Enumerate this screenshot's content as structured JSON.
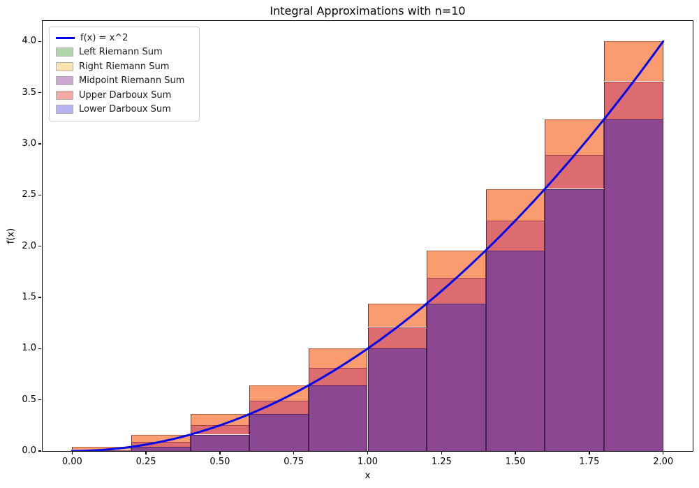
{
  "chart_data": {
    "type": "bar+line",
    "title": "Integral Approximations with n=10",
    "xlabel": "x",
    "ylabel": "f(x)",
    "n": 10,
    "xlim": [
      -0.1,
      2.1
    ],
    "ylim": [
      0,
      4.2
    ],
    "x_tick_values": [
      0.0,
      0.25,
      0.5,
      0.75,
      1.0,
      1.25,
      1.5,
      1.75,
      2.0
    ],
    "x_tick_labels": [
      "0.00",
      "0.25",
      "0.50",
      "0.75",
      "1.00",
      "1.25",
      "1.50",
      "1.75",
      "2.00"
    ],
    "y_tick_values": [
      0.0,
      0.5,
      1.0,
      1.5,
      2.0,
      2.5,
      3.0,
      3.5,
      4.0
    ],
    "y_tick_labels": [
      "0.0",
      "0.5",
      "1.0",
      "1.5",
      "2.0",
      "2.5",
      "3.0",
      "3.5",
      "4.0"
    ],
    "bar_edges": [
      0.0,
      0.2,
      0.4,
      0.6,
      0.8,
      1.0,
      1.2,
      1.4,
      1.6,
      1.8,
      2.0
    ],
    "series": [
      {
        "name": "f(x) = x^2",
        "type": "line",
        "color": "#0000ee",
        "x_range": [
          0,
          2
        ]
      },
      {
        "name": "Left Riemann Sum",
        "type": "bar",
        "base_color": "green",
        "values": [
          0.0,
          0.04,
          0.16,
          0.36,
          0.64,
          1.0,
          1.44,
          1.96,
          2.56,
          3.24
        ]
      },
      {
        "name": "Right Riemann Sum",
        "type": "bar",
        "base_color": "orange",
        "values": [
          0.04,
          0.16,
          0.36,
          0.64,
          1.0,
          1.44,
          1.96,
          2.56,
          3.24,
          4.0
        ]
      },
      {
        "name": "Midpoint Riemann Sum",
        "type": "bar",
        "base_color": "purple",
        "values": [
          0.01,
          0.09,
          0.25,
          0.49,
          0.81,
          1.21,
          1.69,
          2.25,
          2.89,
          3.61
        ]
      },
      {
        "name": "Upper Darboux Sum",
        "type": "bar",
        "base_color": "red",
        "values": [
          0.04,
          0.16,
          0.36,
          0.64,
          1.0,
          1.44,
          1.96,
          2.56,
          3.24,
          4.0
        ]
      },
      {
        "name": "Lower Darboux Sum",
        "type": "bar",
        "base_color": "blue",
        "values": [
          0.0,
          0.04,
          0.16,
          0.36,
          0.64,
          1.0,
          1.44,
          1.96,
          2.56,
          3.24
        ]
      }
    ],
    "composite_colors": {
      "all_overlap_fill": "#8B4791",
      "mid_overlap_fill": "#DC6C70",
      "top_overlap_fill": "#FA9C6F"
    },
    "legend_position": "upper left",
    "grid": false
  },
  "legend": {
    "items": [
      {
        "label": "f(x) = x^2",
        "swatch": "line",
        "color": "#0000ee"
      },
      {
        "label": "Left Riemann Sum",
        "swatch": "patch",
        "color": "#AFD5A8"
      },
      {
        "label": "Right Riemann Sum",
        "swatch": "patch",
        "color": "#FCE3AF"
      },
      {
        "label": "Midpoint Riemann Sum",
        "swatch": "patch",
        "color": "#CCA8D0"
      },
      {
        "label": "Upper Darboux Sum",
        "swatch": "patch",
        "color": "#F5A9A6"
      },
      {
        "label": "Lower Darboux Sum",
        "swatch": "patch",
        "color": "#B7B4F2"
      }
    ]
  }
}
